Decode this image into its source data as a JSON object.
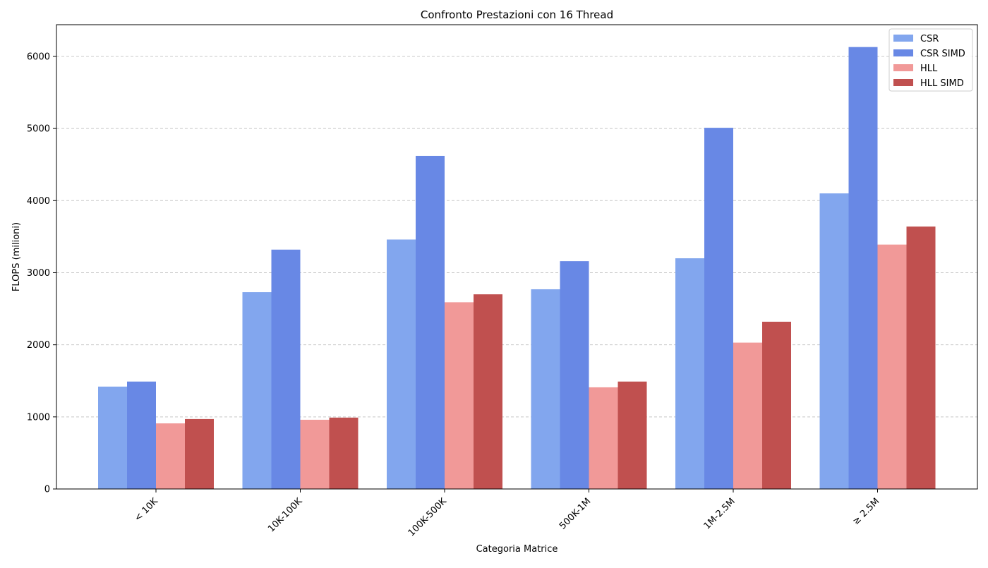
{
  "chart_data": {
    "type": "bar",
    "title": "Confronto Prestazioni con 16 Thread",
    "xlabel": "Categoria Matrice",
    "ylabel": "FLOPS (milioni)",
    "categories": [
      "< 10K",
      "10K-100K",
      "100K-500K",
      "500K-1M",
      "1M-2.5M",
      "≥ 2.5M"
    ],
    "ylim": [
      0,
      6440
    ],
    "yticks": [
      0,
      1000,
      2000,
      3000,
      4000,
      5000,
      6000
    ],
    "grid": "y, dashed",
    "legend_position": "top-right",
    "series": [
      {
        "name": "CSR",
        "color": "#82a6ee",
        "values": [
          1420,
          2730,
          3460,
          2770,
          3200,
          4100
        ]
      },
      {
        "name": "CSR SIMD",
        "color": "#6888e5",
        "values": [
          1490,
          3320,
          4620,
          3160,
          5010,
          6130
        ]
      },
      {
        "name": "HLL",
        "color": "#f19998",
        "values": [
          910,
          960,
          2590,
          1410,
          2030,
          3390
        ]
      },
      {
        "name": "HLL SIMD",
        "color": "#c0504f",
        "values": [
          970,
          990,
          2700,
          1490,
          2320,
          3640
        ]
      }
    ]
  }
}
